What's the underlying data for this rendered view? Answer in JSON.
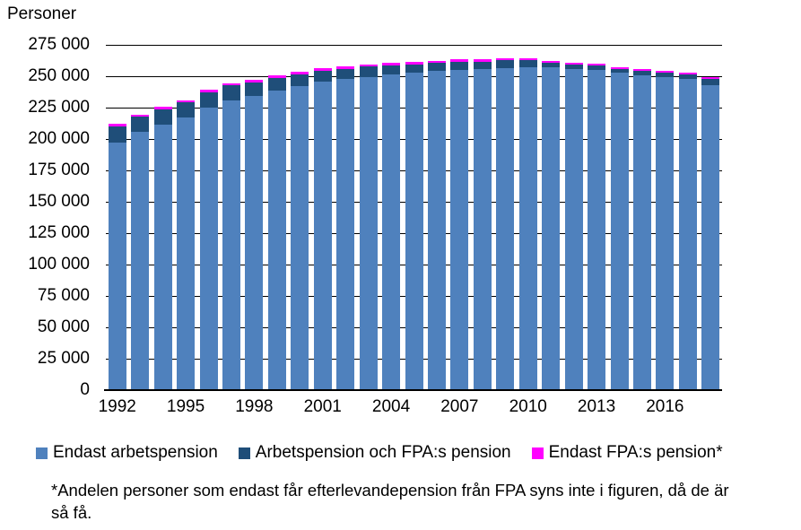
{
  "chart_data": {
    "type": "bar",
    "stacked": true,
    "title": "Personer",
    "categories": [
      1992,
      1993,
      1994,
      1995,
      1996,
      1997,
      1998,
      1999,
      2000,
      2001,
      2002,
      2003,
      2004,
      2005,
      2006,
      2007,
      2008,
      2009,
      2010,
      2011,
      2012,
      2013,
      2014,
      2015,
      2016,
      2017,
      2018
    ],
    "series": [
      {
        "name": "Endast arbetspension",
        "color": "#4F81BD",
        "values": [
          197000,
          205500,
          211500,
          217000,
          225000,
          231000,
          234000,
          238500,
          242000,
          246000,
          248000,
          249500,
          251500,
          252500,
          254000,
          255000,
          255500,
          256500,
          257000,
          257000,
          255500,
          255000,
          252500,
          251000,
          249000,
          247500,
          243000
        ]
      },
      {
        "name": "Arbetspension och FPA:s pension",
        "color": "#1F4E79",
        "values": [
          13000,
          12000,
          12000,
          12000,
          12000,
          11500,
          11000,
          10000,
          9500,
          8500,
          8000,
          8000,
          7000,
          7000,
          6500,
          6500,
          6000,
          6000,
          5500,
          4000,
          4000,
          3500,
          3500,
          3500,
          3500,
          4000,
          5000
        ]
      },
      {
        "name": "Endast FPA:s pension*",
        "color": "#FF00FF",
        "values": [
          2000,
          2000,
          2000,
          2000,
          2000,
          2000,
          2000,
          2000,
          2000,
          2000,
          2000,
          2000,
          2000,
          2000,
          2000,
          2000,
          2000,
          2000,
          2000,
          1500,
          1500,
          1500,
          1500,
          1500,
          1500,
          1500,
          1000
        ]
      }
    ],
    "ylim": [
      0,
      275000
    ],
    "ytick_interval": 25000,
    "ytick_labels": [
      "0",
      "25 000",
      "50 000",
      "75 000",
      "100 000",
      "125 000",
      "150 000",
      "175 000",
      "200 000",
      "225 000",
      "250 000",
      "275 000"
    ],
    "xtick_labels": [
      "1992",
      "1995",
      "1998",
      "2001",
      "2004",
      "2007",
      "2010",
      "2013",
      "2016"
    ],
    "xtick_step": 3,
    "grid": "horizontal",
    "grid_in_front_of_bars": false,
    "legend_position": "bottom"
  },
  "footnote": {
    "line1": "*Andelen personer som endast får efterlevandepension från FPA syns inte i figuren, då de är",
    "line2": "så få."
  }
}
